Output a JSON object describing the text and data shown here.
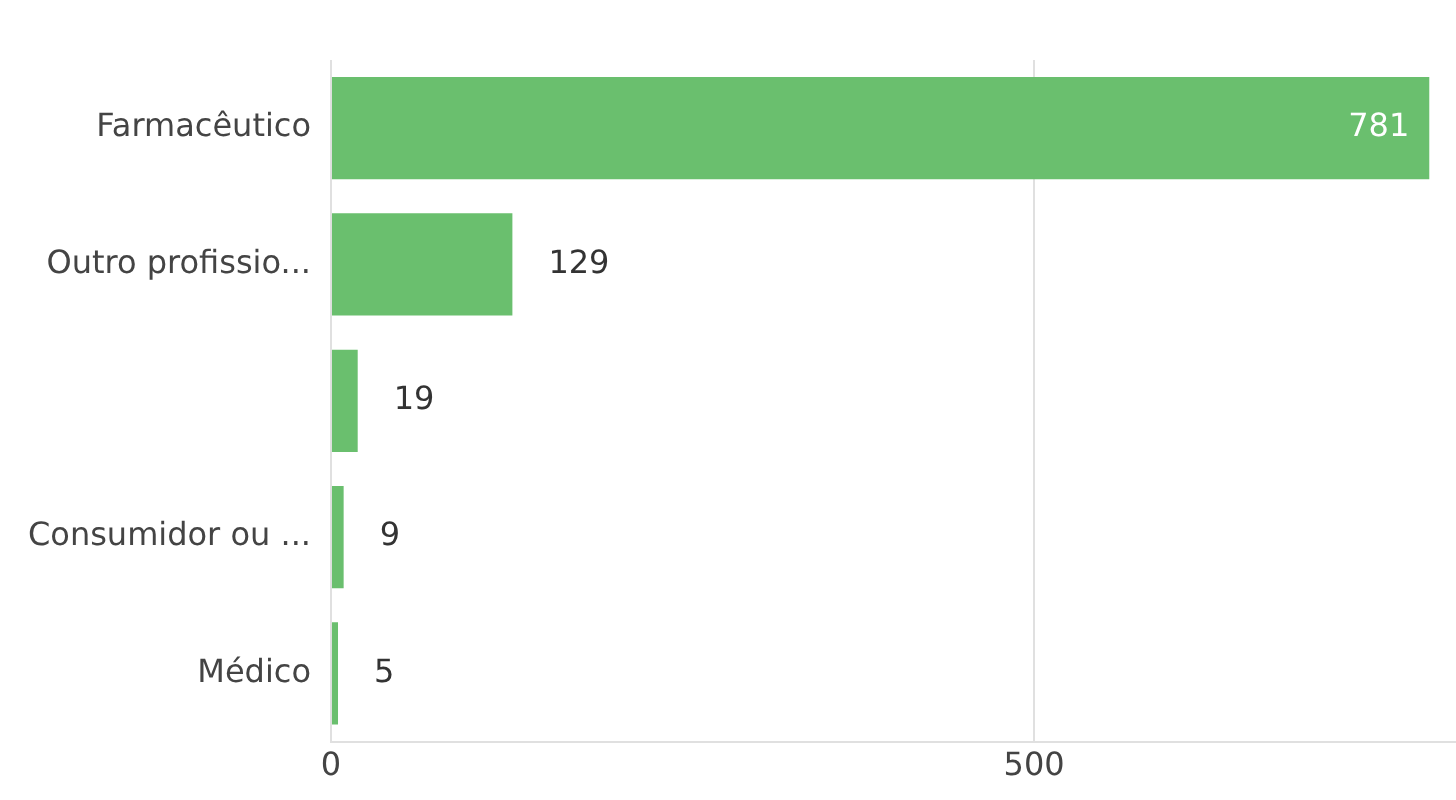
{
  "chart_data": {
    "type": "bar",
    "orientation": "horizontal",
    "categories": [
      "Farmacêutico",
      "Outro profissio...",
      null,
      "Consumidor ou ...",
      "Médico"
    ],
    "values": [
      781,
      129,
      19,
      9,
      5
    ],
    "color": "#6abf6e",
    "xlim": [
      0,
      800
    ],
    "xticks": [
      0,
      500
    ],
    "grid": "x",
    "data_labels": true,
    "legend": false
  }
}
